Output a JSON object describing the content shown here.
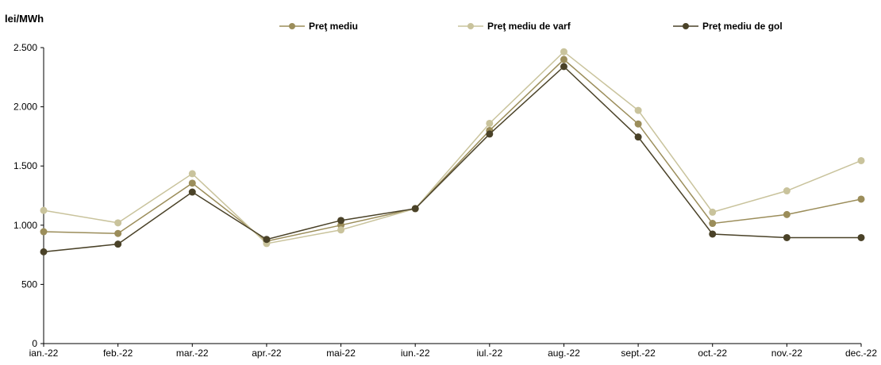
{
  "chart_data": {
    "type": "line",
    "ylabel": "lei/MWh",
    "categories": [
      "ian.-22",
      "feb.-22",
      "mar.-22",
      "apr.-22",
      "mai-22",
      "iun.-22",
      "iul.-22",
      "aug.-22",
      "sept.-22",
      "oct.-22",
      "nov.-22",
      "dec.-22"
    ],
    "ylim": [
      0,
      2500
    ],
    "yticks": [
      0,
      500,
      1000,
      1500,
      2000,
      2500
    ],
    "ytick_labels": [
      "0",
      "500",
      "1.000",
      "1.500",
      "2.000",
      "2.500"
    ],
    "grid": false,
    "legend_position": "top",
    "series": [
      {
        "name": "Preţ mediu",
        "color": "#9b8d5a",
        "values": [
          945,
          930,
          1355,
          865,
          1000,
          1140,
          1800,
          2400,
          1855,
          1015,
          1090,
          1220
        ]
      },
      {
        "name": "Preţ mediu de varf",
        "color": "#c9c39c",
        "values": [
          1125,
          1020,
          1435,
          845,
          960,
          1140,
          1860,
          2465,
          1970,
          1110,
          1290,
          1545
        ]
      },
      {
        "name": "Preţ mediu de gol",
        "color": "#4a4228",
        "values": [
          775,
          840,
          1280,
          880,
          1040,
          1140,
          1770,
          2340,
          1745,
          925,
          895,
          895
        ]
      }
    ]
  }
}
